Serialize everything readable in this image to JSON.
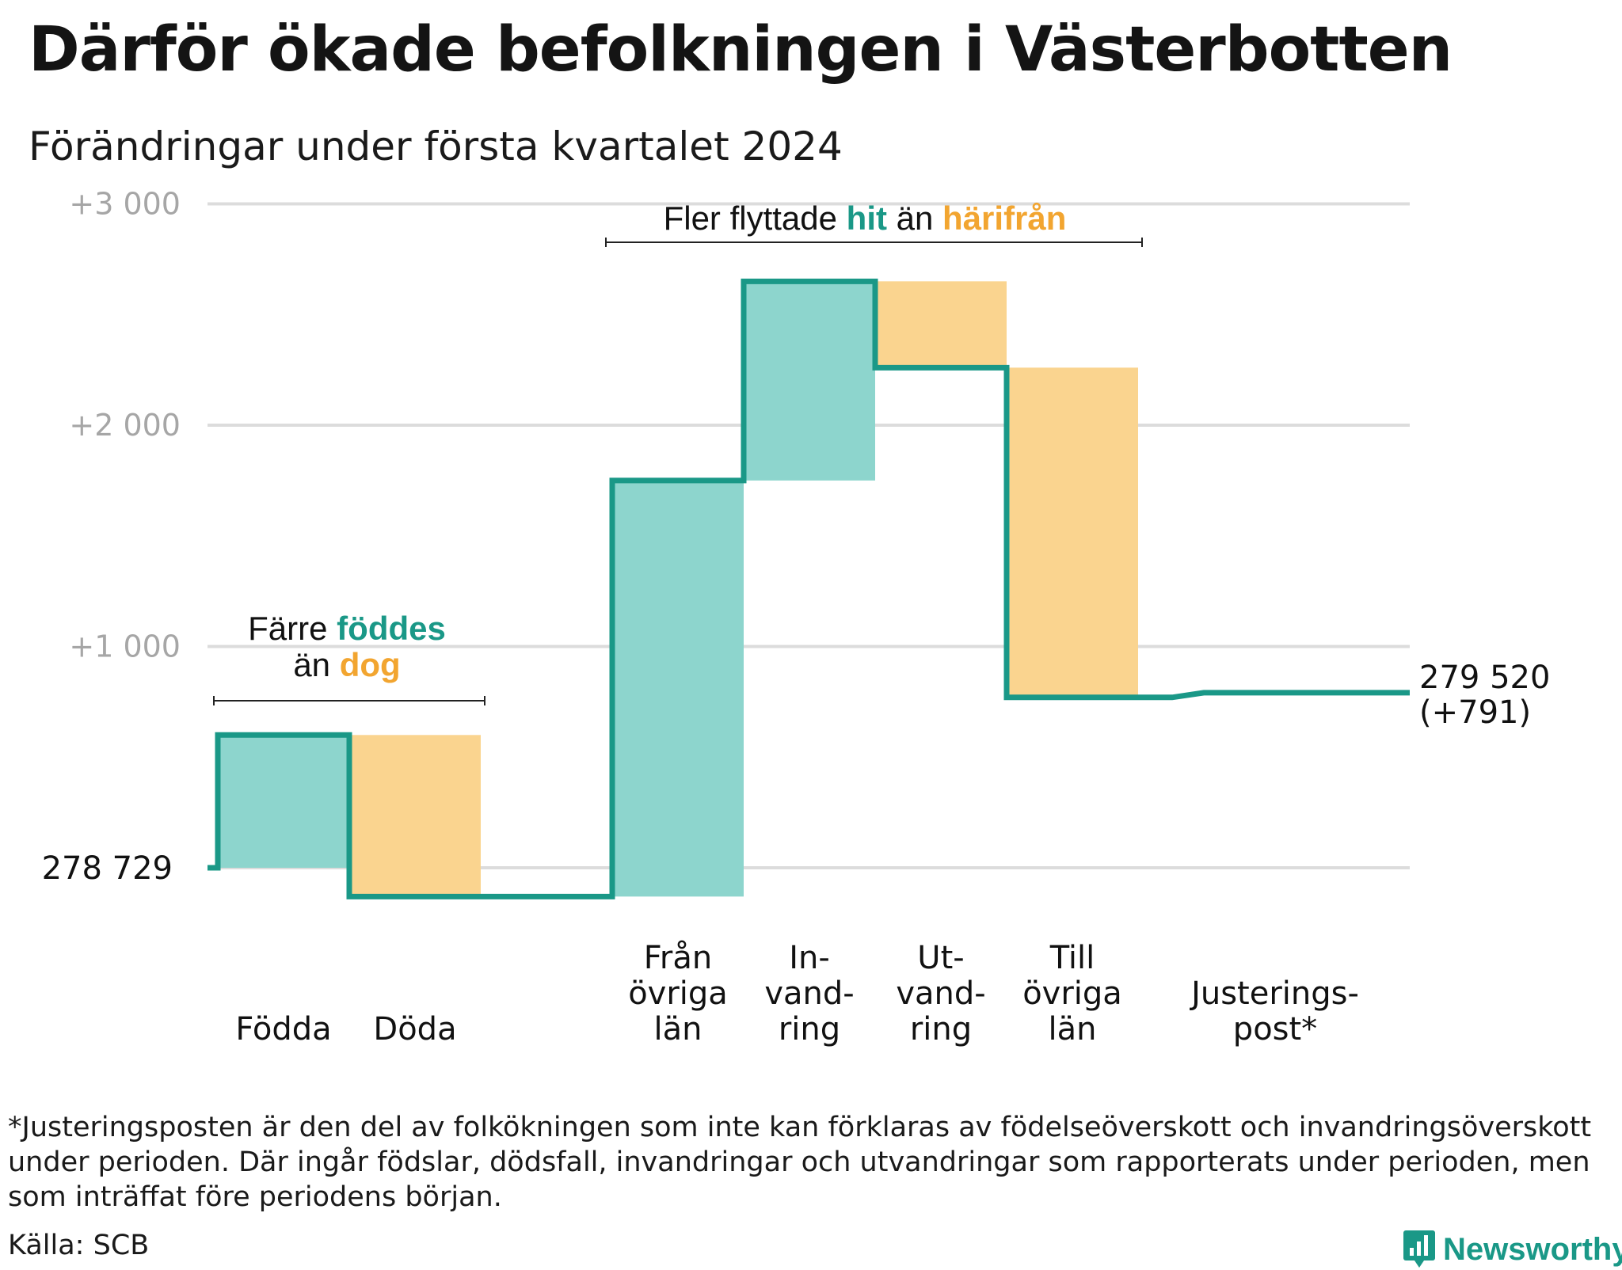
{
  "title": "Därför ökade befolkningen i Västerbotten",
  "subtitle": "Förändringar under första kvartalet 2024",
  "colors": {
    "increase": "#8dd5cd",
    "decrease": "#fad48f",
    "line": "#1a9887",
    "accent_orange": "#f2a530",
    "grid": "#dcdcdc",
    "tick": "#a6a6a6"
  },
  "chart_data": {
    "type": "waterfall",
    "start_population": 278729,
    "start_label": "278  729",
    "end_label": "279 520",
    "end_change_label": "(+791)",
    "y_ticks": [
      {
        "value": 1000,
        "label": "+1  000"
      },
      {
        "value": 2000,
        "label": "+2  000"
      },
      {
        "value": 3000,
        "label": "+3  000"
      }
    ],
    "ylim": [
      -150,
      3000
    ],
    "grid": true,
    "categories": [
      {
        "label": [
          "Födda"
        ],
        "value": 600
      },
      {
        "label": [
          "Döda"
        ],
        "value": -730
      },
      {
        "label": [
          "Från",
          "övriga",
          "län"
        ],
        "value": 1880
      },
      {
        "label": [
          "In-",
          "vand-",
          "ring"
        ],
        "value": 900
      },
      {
        "label": [
          "Ut-",
          "vand-",
          "ring"
        ],
        "value": -390
      },
      {
        "label": [
          "Till",
          "övriga",
          "län"
        ],
        "value": -1490
      },
      {
        "label": [
          "Justerings-",
          "post*"
        ],
        "value": 21
      }
    ],
    "annotations": [
      {
        "lines": [
          [
            {
              "text": "Färre ",
              "style": "normal"
            },
            {
              "text": "föddes",
              "style": "increase"
            }
          ],
          [
            {
              "text": "än ",
              "style": "normal"
            },
            {
              "text": "dog",
              "style": "decrease"
            }
          ]
        ]
      },
      {
        "lines": [
          [
            {
              "text": "Fler flyttade ",
              "style": "normal"
            },
            {
              "text": "hit",
              "style": "increase"
            },
            {
              "text": " än ",
              "style": "normal"
            },
            {
              "text": "härifrån",
              "style": "decrease"
            }
          ]
        ]
      }
    ]
  },
  "footnote": "*Justeringsposten är den del av folkökningen som inte kan förklaras av födelseöverskott och invandringsöverskott under perioden. Där ingår födslar, dödsfall, invandringar och utvandringar som rapporterats under perioden, men som inträffat före periodens början.",
  "source": "Källa: SCB",
  "logo": {
    "label": "Newsworthy",
    "icon": "newsworthy-chart-icon"
  }
}
